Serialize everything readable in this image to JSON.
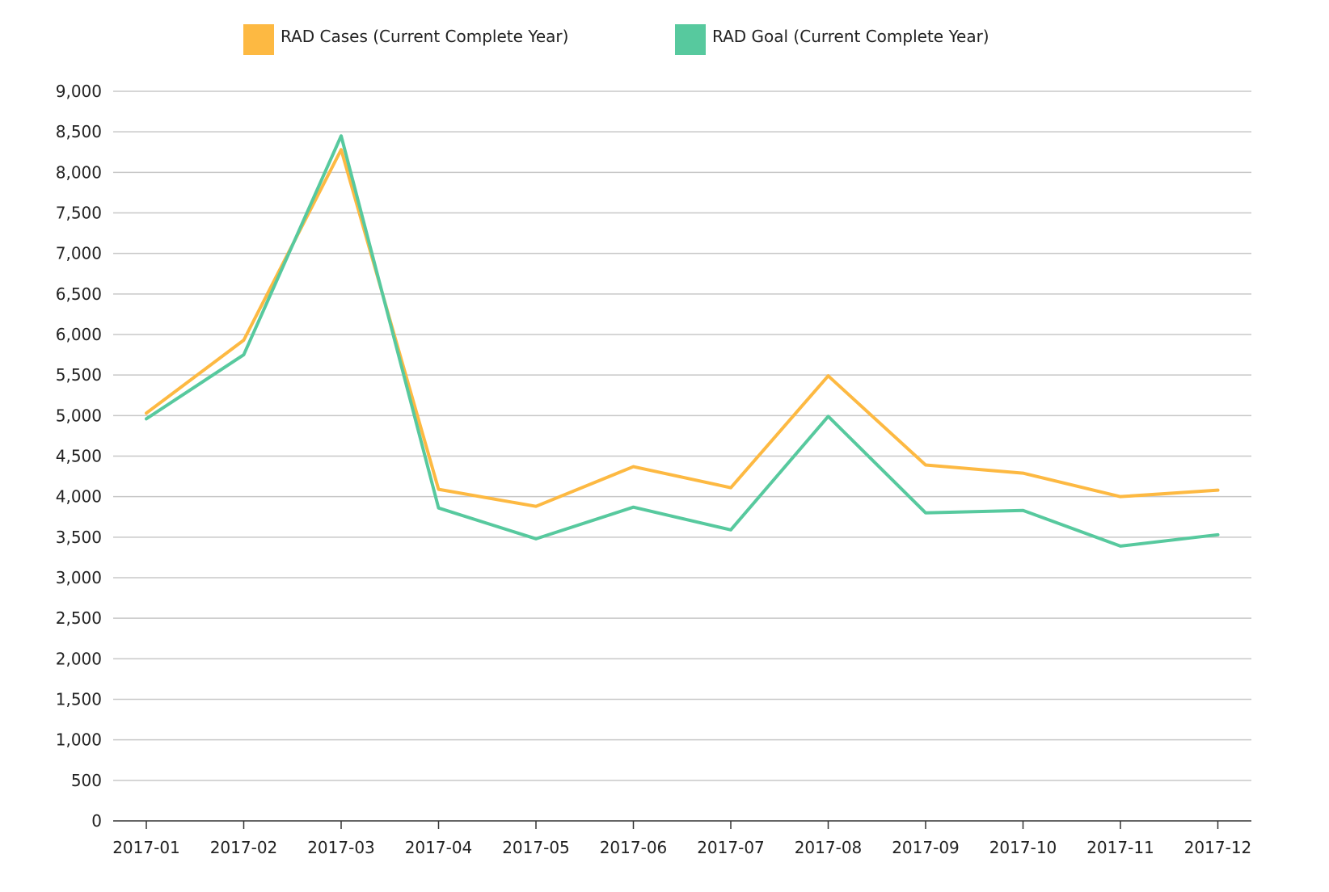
{
  "chart_data": {
    "type": "line",
    "title": "",
    "xlabel": "",
    "ylabel": "",
    "categories": [
      "2017-01",
      "2017-02",
      "2017-03",
      "2017-04",
      "2017-05",
      "2017-06",
      "2017-07",
      "2017-08",
      "2017-09",
      "2017-10",
      "2017-11",
      "2017-12"
    ],
    "ylim": [
      0,
      9000
    ],
    "y_ticks": [
      0,
      500,
      1000,
      1500,
      2000,
      2500,
      3000,
      3500,
      4000,
      4500,
      5000,
      5500,
      6000,
      6500,
      7000,
      7500,
      8000,
      8500,
      9000
    ],
    "y_tick_labels": [
      "0",
      "500",
      "1,000",
      "1,500",
      "2,000",
      "2,500",
      "3,000",
      "3,500",
      "4,000",
      "4,500",
      "5,000",
      "5,500",
      "6,000",
      "6,500",
      "7,000",
      "7,500",
      "8,000",
      "8,500",
      "9,000"
    ],
    "grid": true,
    "legend_position": "top-center",
    "series": [
      {
        "name": "RAD Cases (Current Complete Year)",
        "color": "#FDB942",
        "values": [
          5030,
          5930,
          8280,
          4090,
          3880,
          4370,
          4110,
          5490,
          4390,
          4290,
          4000,
          4080
        ]
      },
      {
        "name": "RAD Goal (Current Complete Year)",
        "color": "#57C99E",
        "values": [
          4960,
          5750,
          8450,
          3860,
          3480,
          3870,
          3590,
          4990,
          3800,
          3830,
          3390,
          3530
        ]
      }
    ]
  }
}
